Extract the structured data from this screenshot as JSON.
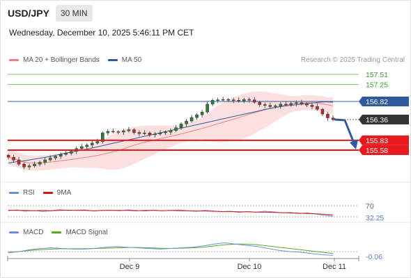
{
  "header": {
    "symbol": "USD/JPY",
    "timeframe": "30 MIN",
    "datetime": "Wednesday, December 10, 2025 5:46:11 PM CET",
    "credit": "Research © 2025 Trading Central"
  },
  "legend_main": [
    {
      "label": "MA 20 + Bollinger Bands",
      "color": "#f08080"
    },
    {
      "label": "MA 50",
      "color": "#2f5a9e"
    }
  ],
  "legend_rsi": [
    {
      "label": "RSI",
      "color": "#6a8fd8"
    },
    {
      "label": "9MA",
      "color": "#dd1111"
    }
  ],
  "legend_macd": [
    {
      "label": "MACD",
      "color": "#6a8fd8"
    },
    {
      "label": "MACD Signal",
      "color": "#55aa22"
    }
  ],
  "colors": {
    "resistance": "#7fc46a",
    "pivot": "#2f5a9e",
    "support": "#e8191f",
    "current": "#333333",
    "arrow": "#2f5a9e",
    "candle_up": "#2e7d32",
    "candle_down": "#c62828",
    "band_fill": "#fbdada"
  },
  "chart_data": {
    "type": "candlestick",
    "x_ticks": [
      "Dec 9",
      "Dec 10",
      "Dec 11"
    ],
    "price_levels": [
      {
        "value": 157.51,
        "label": "157.51",
        "kind": "resistance"
      },
      {
        "value": 157.25,
        "label": "157.25",
        "kind": "resistance"
      },
      {
        "value": 156.82,
        "label": "156.82",
        "kind": "pivot"
      },
      {
        "value": 156.36,
        "label": "156.36",
        "kind": "current"
      },
      {
        "value": 155.83,
        "label": "155.83",
        "kind": "support"
      },
      {
        "value": 155.58,
        "label": "155.58",
        "kind": "support"
      }
    ],
    "close_series": [
      155.4,
      155.33,
      155.22,
      155.15,
      155.18,
      155.22,
      155.27,
      155.33,
      155.38,
      155.42,
      155.47,
      155.5,
      155.55,
      155.62,
      155.67,
      155.71,
      155.76,
      155.8,
      156.02,
      156.06,
      156.05,
      156.04,
      156.07,
      156.1,
      156.03,
      156.0,
      156.02,
      155.97,
      155.99,
      156.02,
      156.04,
      156.08,
      156.15,
      156.25,
      156.32,
      156.41,
      156.48,
      156.55,
      156.75,
      156.85,
      156.86,
      156.87,
      156.86,
      156.85,
      156.83,
      156.87,
      156.86,
      156.8,
      156.74,
      156.72,
      156.69,
      156.71,
      156.75,
      156.74,
      156.77,
      156.79,
      156.76,
      156.73,
      156.69,
      156.62,
      156.5,
      156.4,
      156.36
    ],
    "ma50_series": [
      155.25,
      155.28,
      155.3,
      155.33,
      155.36,
      155.39,
      155.42,
      155.46,
      155.5,
      155.53,
      155.57,
      155.6,
      155.64,
      155.68,
      155.72,
      155.76,
      155.8,
      155.84,
      155.88,
      155.92,
      155.96,
      156.0,
      156.04,
      156.08,
      156.12,
      156.16,
      156.2,
      156.24,
      156.28,
      156.32,
      156.36,
      156.4,
      156.44,
      156.48,
      156.52,
      156.56,
      156.6,
      156.64,
      156.67,
      156.7,
      156.72,
      156.74,
      156.76,
      156.78,
      156.8,
      156.81,
      156.8
    ],
    "rsi": {
      "levels": [
        70,
        30
      ],
      "last": 32.25,
      "series": [
        52,
        55,
        50,
        53,
        49,
        52,
        56,
        53,
        54,
        55,
        51,
        53,
        54,
        52,
        55,
        53,
        51,
        54,
        52,
        53,
        55,
        52,
        50,
        53,
        51,
        48,
        50,
        46,
        49,
        47,
        50,
        48,
        44,
        46,
        42,
        44,
        40,
        35,
        32.25
      ],
      "ma9": [
        54,
        53,
        53,
        52,
        53,
        52,
        53,
        54,
        53,
        53,
        52,
        53,
        53,
        53,
        53,
        52,
        53,
        53,
        52,
        53,
        52,
        52,
        51,
        51,
        50,
        49,
        49,
        48,
        48,
        47,
        47,
        46,
        45,
        44,
        43,
        42,
        41,
        39,
        37
      ]
    },
    "macd": {
      "last": -0.06,
      "series": [
        -0.02,
        0.0,
        0.03,
        0.05,
        0.06,
        0.05,
        0.04,
        0.04,
        0.05,
        0.07,
        0.08,
        0.07,
        0.06,
        0.05,
        0.04,
        0.05,
        0.06,
        0.07,
        0.09,
        0.12,
        0.14,
        0.12,
        0.1,
        0.08,
        0.05,
        0.02,
        0.0,
        -0.01,
        -0.03,
        -0.05,
        -0.06
      ],
      "signal": [
        -0.01,
        0.0,
        0.02,
        0.03,
        0.04,
        0.045,
        0.045,
        0.045,
        0.05,
        0.055,
        0.06,
        0.065,
        0.065,
        0.06,
        0.055,
        0.05,
        0.055,
        0.06,
        0.07,
        0.09,
        0.11,
        0.12,
        0.12,
        0.11,
        0.09,
        0.07,
        0.05,
        0.03,
        0.01,
        -0.01,
        -0.03
      ]
    }
  }
}
